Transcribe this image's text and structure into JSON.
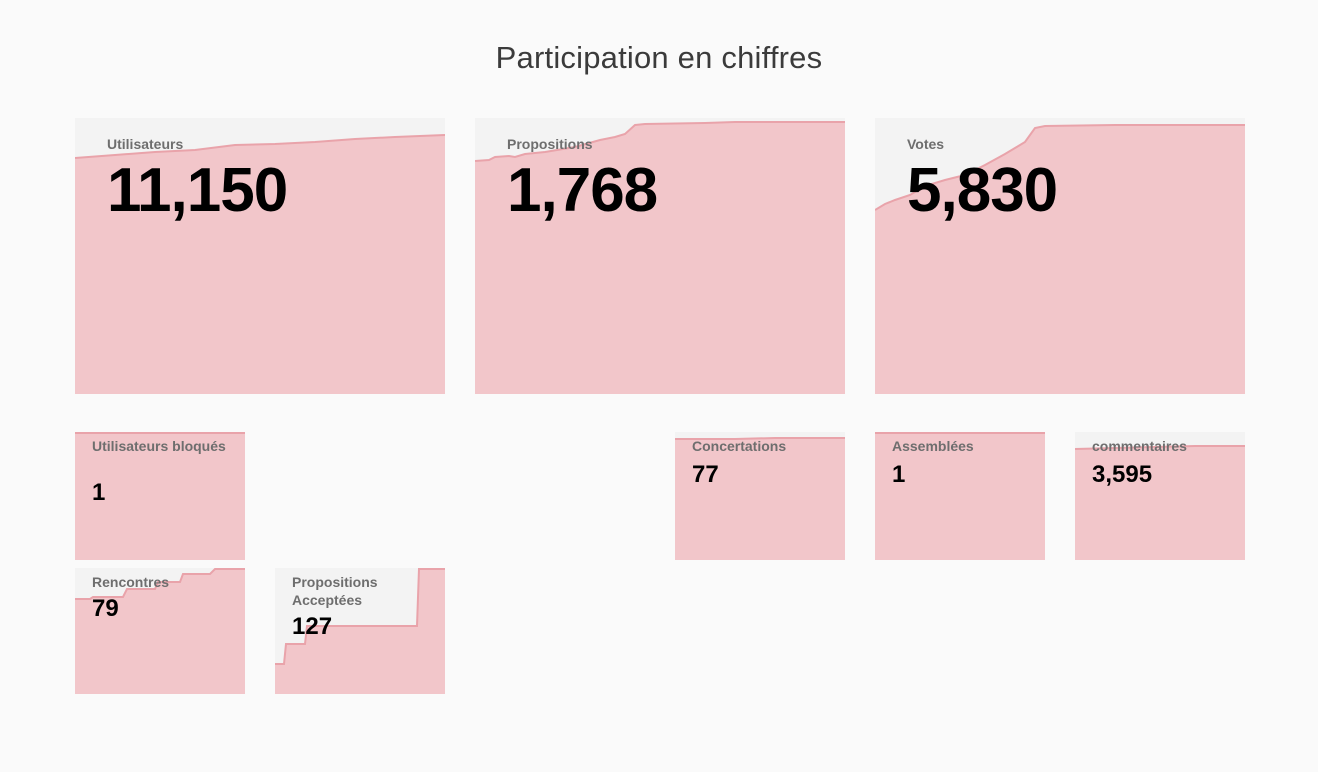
{
  "title": "Participation en chiffres",
  "colors": {
    "fill": "#f2c6ca",
    "line": "#e9a3aa",
    "card_bg": "#f3f3f3",
    "page_bg": "#fafafa"
  },
  "stats": {
    "users": {
      "label": "Utilisateurs",
      "value": "11,150"
    },
    "proposals": {
      "label": "Propositions",
      "value": "1,768"
    },
    "votes": {
      "label": "Votes",
      "value": "5,830"
    },
    "blocked_users": {
      "label": "Utilisateurs bloqués",
      "value": "1"
    },
    "concertations": {
      "label": "Concertations",
      "value": "77"
    },
    "assemblies": {
      "label": "Assemblées",
      "value": "1"
    },
    "comments": {
      "label": "commentaires",
      "value": "3,595"
    },
    "meetings": {
      "label": "Rencontres",
      "value": "79"
    },
    "accepted_proposals": {
      "label": "Propositions Acceptées",
      "value": "127"
    }
  }
}
